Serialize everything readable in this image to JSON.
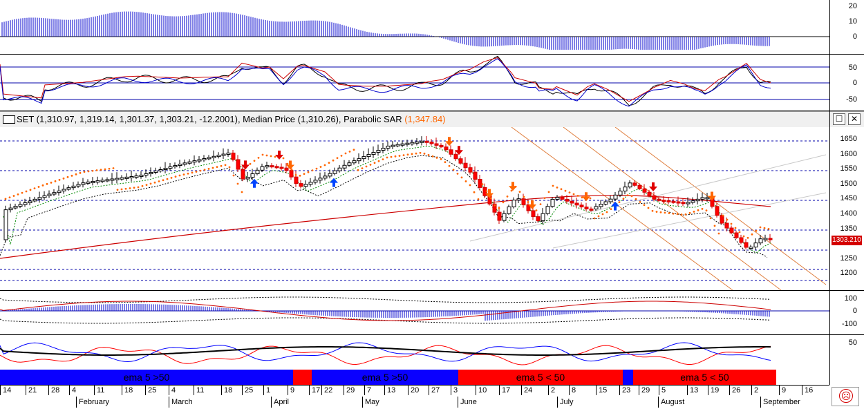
{
  "title_bar": {
    "symbol_text": "SET (1,310.97, 1,319.14, 1,301.37, 1,303.21, -12.2001), Median Price (1,310.26), Parabolic SAR ",
    "sar_value": "(1,347.84)",
    "minimize_label": "☐",
    "close_label": "✕"
  },
  "price_tag": "1303.210",
  "axes": {
    "osc1": [
      "20",
      "10",
      "0"
    ],
    "osc2": [
      "50",
      "0",
      "-50"
    ],
    "price": [
      "1650",
      "1600",
      "1550",
      "1500",
      "1450",
      "1400",
      "1350",
      "1300",
      "1250",
      "1200"
    ],
    "osc3": [
      "100",
      "0",
      "-100"
    ],
    "osc4": [
      "50"
    ]
  },
  "ema_bands": [
    {
      "label": "ema 5 >50",
      "color": "#0a00ff"
    },
    {
      "label": "",
      "color": "#ff0000"
    },
    {
      "label": "ema 5 >50",
      "color": "#0a00ff"
    },
    {
      "label": "ema 5 < 50",
      "color": "#ff0000"
    },
    {
      "label": "",
      "color": "#0a00ff"
    },
    {
      "label": "ema 5 < 50",
      "color": "#ff0000"
    }
  ],
  "date_ticks": [
    "14",
    "21",
    "28",
    "4",
    "11",
    "18",
    "25",
    "4",
    "11",
    "18",
    "25",
    "1",
    "9",
    "17",
    "22",
    "29",
    "7",
    "13",
    "20",
    "27",
    "3",
    "10",
    "17",
    "24",
    "2",
    "8",
    "15",
    "23",
    "29",
    "5",
    "13",
    "19",
    "26",
    "2",
    "9",
    "16"
  ],
  "months": [
    "February",
    "March",
    "April",
    "May",
    "June",
    "July",
    "August",
    "September"
  ],
  "colors": {
    "up_candle": "#ffffff",
    "down_candle": "#ff0000",
    "sar": "#ff6600",
    "ma_long": "#cc0000",
    "ma_mid": "#000000",
    "osc_blue": "#0000cc"
  },
  "status_icon": "frown-icon"
}
